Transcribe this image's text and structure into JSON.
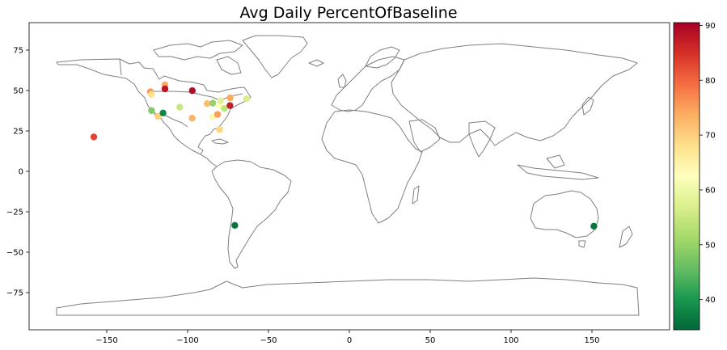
{
  "chart_data": {
    "type": "scatter",
    "title": "Avg Daily PercentOfBaseline",
    "xlabel": "",
    "ylabel": "",
    "xlim": [
      -198,
      198
    ],
    "ylim": [
      -98,
      92
    ],
    "x_ticks": [
      -150,
      -100,
      -50,
      0,
      50,
      100,
      150
    ],
    "y_ticks": [
      75,
      50,
      25,
      0,
      -25,
      -50,
      -75
    ],
    "x_tick_labels": [
      "−150",
      "−100",
      "−50",
      "0",
      "50",
      "100",
      "150"
    ],
    "y_tick_labels": [
      "75",
      "50",
      "25",
      "0",
      "−25",
      "−50",
      "−75"
    ],
    "grid": false,
    "colormap": "RdYlGn_r",
    "colorbar": {
      "min": 34.5,
      "max": 90.5,
      "ticks": [
        40,
        50,
        60,
        70,
        80,
        90
      ],
      "tick_labels": [
        "40",
        "50",
        "60",
        "70",
        "80",
        "90"
      ],
      "colors": [
        "#006837",
        "#1a9850",
        "#66bd63",
        "#a6d96a",
        "#d9ef8b",
        "#ffffbf",
        "#fee08b",
        "#fdae61",
        "#f46d43",
        "#d73027",
        "#a50026"
      ]
    },
    "points": [
      {
        "lon": -158,
        "lat": 21.3,
        "value": 83
      },
      {
        "lon": -123,
        "lat": 49.2,
        "value": 76
      },
      {
        "lon": -122.4,
        "lat": 47.6,
        "value": 68
      },
      {
        "lon": -114,
        "lat": 53.5,
        "value": 74
      },
      {
        "lon": -114,
        "lat": 51.0,
        "value": 88
      },
      {
        "lon": -97.1,
        "lat": 49.9,
        "value": 89
      },
      {
        "lon": -122.3,
        "lat": 37.6,
        "value": 48
      },
      {
        "lon": -118.4,
        "lat": 34.0,
        "value": 70
      },
      {
        "lon": -115.2,
        "lat": 36.1,
        "value": 38
      },
      {
        "lon": -104.9,
        "lat": 39.7,
        "value": 55
      },
      {
        "lon": -97.2,
        "lat": 32.9,
        "value": 73
      },
      {
        "lon": -87.9,
        "lat": 41.9,
        "value": 72
      },
      {
        "lon": -84.4,
        "lat": 42.2,
        "value": 50
      },
      {
        "lon": -84.5,
        "lat": 33.7,
        "value": 64
      },
      {
        "lon": -81.5,
        "lat": 35.2,
        "value": 75
      },
      {
        "lon": -80.2,
        "lat": 25.8,
        "value": 69
      },
      {
        "lon": -80.0,
        "lat": 40.4,
        "value": 62
      },
      {
        "lon": -79.6,
        "lat": 43.7,
        "value": 58
      },
      {
        "lon": -77.2,
        "lat": 38.9,
        "value": 54
      },
      {
        "lon": -73.7,
        "lat": 45.5,
        "value": 74
      },
      {
        "lon": -73.8,
        "lat": 40.7,
        "value": 87
      },
      {
        "lon": -63.6,
        "lat": 44.9,
        "value": 57
      },
      {
        "lon": -70.8,
        "lat": -33.4,
        "value": 36
      },
      {
        "lon": 151.2,
        "lat": -33.9,
        "value": 36
      }
    ]
  }
}
